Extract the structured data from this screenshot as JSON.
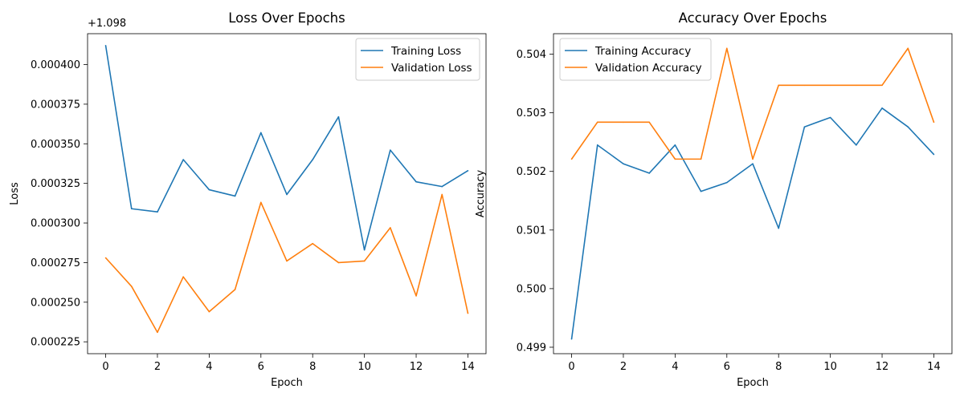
{
  "chart_data": [
    {
      "type": "line",
      "title": "Loss Over Epochs",
      "xlabel": "Epoch",
      "ylabel": "Loss",
      "y_offset_label": "+1.098",
      "x": [
        0,
        1,
        2,
        3,
        4,
        5,
        6,
        7,
        8,
        9,
        10,
        11,
        12,
        13,
        14
      ],
      "xlim": [
        -0.7,
        14.7
      ],
      "ylim": [
        0.0002175,
        0.0004195
      ],
      "x_ticks": [
        0,
        2,
        4,
        6,
        8,
        10,
        12,
        14
      ],
      "y_ticks": [
        0.000225,
        0.00025,
        0.000275,
        0.0003,
        0.000325,
        0.00035,
        0.000375,
        0.0004
      ],
      "y_tick_labels": [
        "0.000225",
        "0.000250",
        "0.000275",
        "0.000300",
        "0.000325",
        "0.000350",
        "0.000375",
        "0.000400"
      ],
      "grid": false,
      "legend_position": "upper right",
      "series": [
        {
          "name": "Training Loss",
          "color": "#1f77b4",
          "values": [
            0.000412,
            0.000309,
            0.000307,
            0.00034,
            0.000321,
            0.000317,
            0.000357,
            0.000318,
            0.00034,
            0.000367,
            0.000283,
            0.000346,
            0.000326,
            0.000323,
            0.000333
          ]
        },
        {
          "name": "Validation Loss",
          "color": "#ff7f0e",
          "values": [
            0.000278,
            0.00026,
            0.000231,
            0.000266,
            0.000244,
            0.000258,
            0.000313,
            0.000276,
            0.000287,
            0.000275,
            0.000276,
            0.000297,
            0.000254,
            0.000318,
            0.000243
          ]
        }
      ]
    },
    {
      "type": "line",
      "title": "Accuracy Over Epochs",
      "xlabel": "Epoch",
      "ylabel": "Accuracy",
      "y_offset_label": "",
      "x": [
        0,
        1,
        2,
        3,
        4,
        5,
        6,
        7,
        8,
        9,
        10,
        11,
        12,
        13,
        14
      ],
      "xlim": [
        -0.7,
        14.7
      ],
      "ylim": [
        0.49889,
        0.50435
      ],
      "x_ticks": [
        0,
        2,
        4,
        6,
        8,
        10,
        12,
        14
      ],
      "y_ticks": [
        0.499,
        0.5,
        0.501,
        0.502,
        0.503,
        0.504
      ],
      "y_tick_labels": [
        "0.499",
        "0.500",
        "0.501",
        "0.502",
        "0.503",
        "0.504"
      ],
      "grid": false,
      "legend_position": "upper left",
      "series": [
        {
          "name": "Training Accuracy",
          "color": "#1f77b4",
          "values": [
            0.49914,
            0.50245,
            0.50213,
            0.50197,
            0.50245,
            0.50166,
            0.50181,
            0.50213,
            0.50103,
            0.50276,
            0.50292,
            0.50245,
            0.50308,
            0.50276,
            0.50229
          ]
        },
        {
          "name": "Validation Accuracy",
          "color": "#ff7f0e",
          "values": [
            0.50221,
            0.50284,
            0.50284,
            0.50284,
            0.50221,
            0.50221,
            0.5041,
            0.50221,
            0.50347,
            0.50347,
            0.50347,
            0.50347,
            0.50347,
            0.5041,
            0.50284
          ]
        }
      ]
    }
  ]
}
